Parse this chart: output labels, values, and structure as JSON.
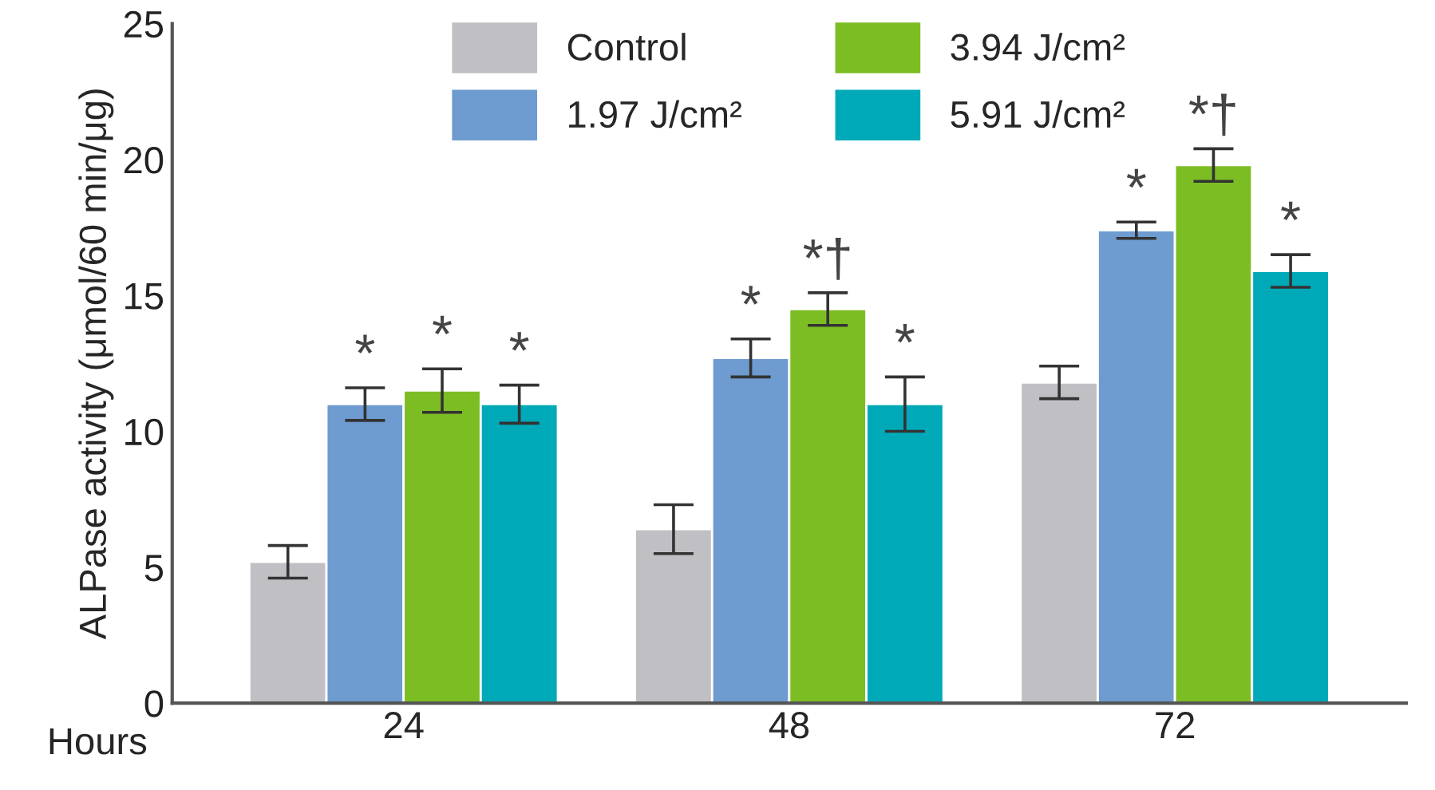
{
  "chart_data": {
    "type": "bar",
    "xlabel": "Hours",
    "ylabel": "ALPase activity (μmol/60 min/μg)",
    "categories": [
      "24",
      "48",
      "72"
    ],
    "series": [
      {
        "name": "Control",
        "color": "#c0c0c4",
        "values": [
          5.2,
          6.4,
          11.8
        ],
        "errors": [
          0.6,
          0.9,
          0.6
        ]
      },
      {
        "name": "1.97 J/cm²",
        "color": "#6e9bd0",
        "values": [
          11.0,
          12.7,
          17.4
        ],
        "errors": [
          0.6,
          0.7,
          0.3
        ],
        "value_labels": [
          "*",
          "*",
          "*"
        ]
      },
      {
        "name": "3.94 J/cm²",
        "color": "#7dbd24",
        "values": [
          11.5,
          14.5,
          19.8
        ],
        "errors": [
          0.8,
          0.6,
          0.6
        ],
        "value_labels": [
          "*",
          "*†",
          "*†"
        ]
      },
      {
        "name": "5.91 J/cm²",
        "color": "#00a9b8",
        "values": [
          11.0,
          11.0,
          15.9
        ],
        "errors": [
          0.7,
          1.0,
          0.6
        ],
        "value_labels": [
          "*",
          "*",
          "*"
        ]
      }
    ],
    "ylim": [
      0,
      25
    ],
    "yticks": [
      0,
      5,
      10,
      15,
      20,
      25
    ],
    "grid": false,
    "legend": "top"
  }
}
